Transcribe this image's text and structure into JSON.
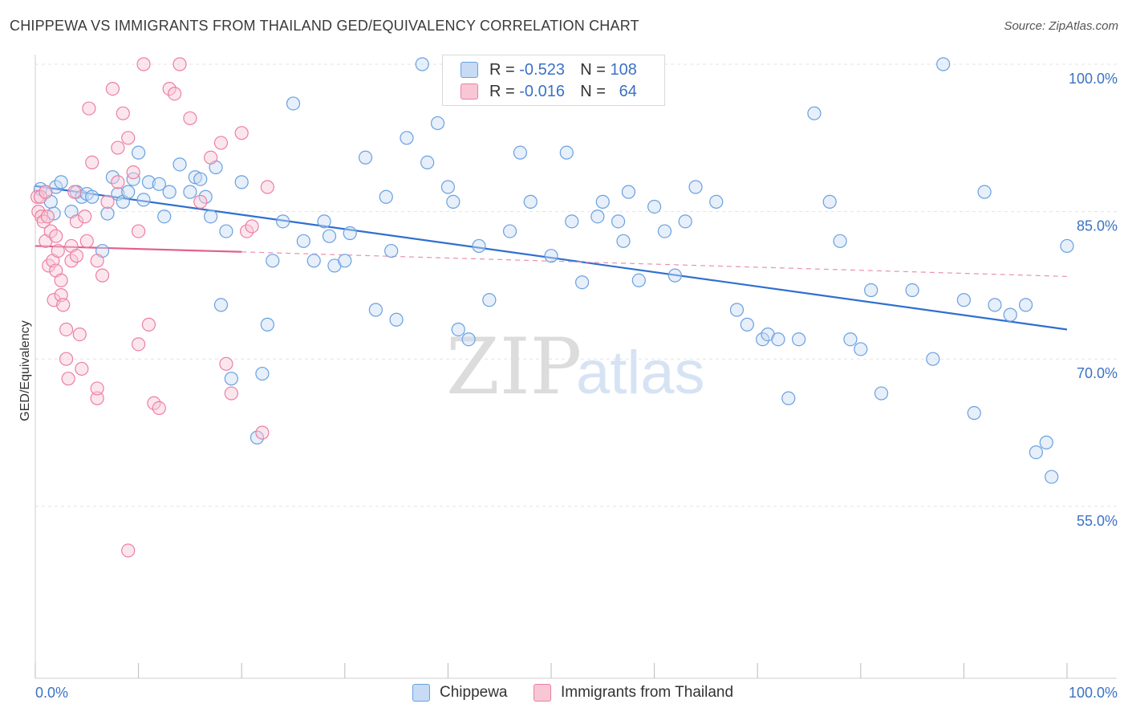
{
  "title": "CHIPPEWA VS IMMIGRANTS FROM THAILAND GED/EQUIVALENCY CORRELATION CHART",
  "source": "Source: ZipAtlas.com",
  "watermark": {
    "zip": "ZIP",
    "atlas": "atlas"
  },
  "legend": {
    "r_label": "R =",
    "n_label": "N =",
    "rows": [
      {
        "name": "Chippewa",
        "r": "-0.523",
        "n": "108",
        "color": "#6aa0e0",
        "fill": "#c7dbf5"
      },
      {
        "name": "Immigrants from Thailand",
        "r": "-0.016",
        "n": "64",
        "color": "#ec7fa2",
        "fill": "#f8c7d6"
      }
    ]
  },
  "chart_data": {
    "type": "scatter",
    "title": "CHIPPEWA VS IMMIGRANTS FROM THAILAND GED/EQUIVALENCY CORRELATION CHART",
    "xlabel": "",
    "ylabel": "GED/Equivalency",
    "xlim": [
      0,
      100
    ],
    "ylim": [
      37.5,
      100
    ],
    "x_tick_labels": [
      "0.0%",
      "100.0%"
    ],
    "y_ticks": [
      100,
      85,
      70,
      55
    ],
    "y_tick_labels": [
      "100.0%",
      "85.0%",
      "70.0%",
      "55.0%"
    ],
    "series": [
      {
        "name": "Chippewa",
        "color": "#6aa0e0",
        "fill": "#c7dbf5",
        "trend": {
          "x": [
            0,
            100
          ],
          "y": [
            87.6,
            73.0
          ],
          "dashed_x": null
        },
        "points": [
          [
            0.5,
            87.3
          ],
          [
            1.0,
            87.0
          ],
          [
            1.5,
            86.0
          ],
          [
            1.8,
            84.8
          ],
          [
            2.0,
            87.5
          ],
          [
            2.5,
            88.0
          ],
          [
            3.5,
            85.0
          ],
          [
            4.0,
            87.0
          ],
          [
            4.5,
            86.5
          ],
          [
            5.0,
            86.8
          ],
          [
            5.5,
            86.5
          ],
          [
            6.5,
            81.0
          ],
          [
            7.0,
            84.8
          ],
          [
            7.5,
            88.5
          ],
          [
            8.0,
            86.8
          ],
          [
            8.5,
            86.0
          ],
          [
            9.0,
            87.0
          ],
          [
            9.5,
            88.3
          ],
          [
            10.0,
            91.0
          ],
          [
            10.5,
            86.2
          ],
          [
            11.0,
            88.0
          ],
          [
            12.0,
            87.8
          ],
          [
            12.5,
            84.5
          ],
          [
            13.0,
            87.0
          ],
          [
            14.0,
            89.8
          ],
          [
            15.0,
            87.0
          ],
          [
            15.5,
            88.5
          ],
          [
            16.0,
            88.3
          ],
          [
            16.5,
            86.5
          ],
          [
            17.0,
            84.5
          ],
          [
            17.5,
            89.5
          ],
          [
            18.0,
            75.5
          ],
          [
            18.5,
            83.0
          ],
          [
            19.0,
            68.0
          ],
          [
            20.0,
            88.0
          ],
          [
            21.5,
            62.0
          ],
          [
            22.0,
            68.5
          ],
          [
            22.5,
            73.5
          ],
          [
            23.0,
            80.0
          ],
          [
            24.0,
            84.0
          ],
          [
            25.0,
            96.0
          ],
          [
            26.0,
            82.0
          ],
          [
            27.0,
            80.0
          ],
          [
            28.0,
            84.0
          ],
          [
            28.5,
            82.5
          ],
          [
            29.0,
            79.5
          ],
          [
            30.0,
            80.0
          ],
          [
            30.5,
            82.8
          ],
          [
            32.0,
            90.5
          ],
          [
            33.0,
            75.0
          ],
          [
            34.0,
            86.5
          ],
          [
            34.5,
            81.0
          ],
          [
            35.0,
            74.0
          ],
          [
            36.0,
            92.5
          ],
          [
            37.5,
            100.0
          ],
          [
            38.0,
            90.0
          ],
          [
            39.0,
            94.0
          ],
          [
            40.0,
            87.5
          ],
          [
            40.5,
            86.0
          ],
          [
            41.0,
            73.0
          ],
          [
            42.0,
            72.0
          ],
          [
            43.0,
            81.5
          ],
          [
            44.0,
            76.0
          ],
          [
            46.0,
            83.0
          ],
          [
            47.0,
            91.0
          ],
          [
            48.0,
            86.0
          ],
          [
            50.0,
            80.5
          ],
          [
            51.5,
            91.0
          ],
          [
            52.0,
            84.0
          ],
          [
            53.0,
            77.8
          ],
          [
            54.5,
            84.5
          ],
          [
            55.0,
            86.0
          ],
          [
            56.5,
            84.0
          ],
          [
            57.0,
            82.0
          ],
          [
            57.5,
            87.0
          ],
          [
            58.5,
            78.0
          ],
          [
            60.0,
            85.5
          ],
          [
            61.0,
            83.0
          ],
          [
            62.0,
            78.5
          ],
          [
            63.0,
            84.0
          ],
          [
            64.0,
            87.5
          ],
          [
            66.0,
            86.0
          ],
          [
            68.0,
            75.0
          ],
          [
            69.0,
            73.5
          ],
          [
            70.5,
            72.0
          ],
          [
            71.0,
            72.5
          ],
          [
            72.0,
            72.0
          ],
          [
            73.0,
            66.0
          ],
          [
            74.0,
            72.0
          ],
          [
            75.5,
            95.0
          ],
          [
            77.0,
            86.0
          ],
          [
            78.0,
            82.0
          ],
          [
            79.0,
            72.0
          ],
          [
            80.0,
            71.0
          ],
          [
            81.0,
            77.0
          ],
          [
            82.0,
            66.5
          ],
          [
            85.0,
            77.0
          ],
          [
            87.0,
            70.0
          ],
          [
            88.0,
            100.0
          ],
          [
            90.0,
            76.0
          ],
          [
            91.0,
            64.5
          ],
          [
            92.0,
            87.0
          ],
          [
            93.0,
            75.5
          ],
          [
            94.5,
            74.5
          ],
          [
            96.0,
            75.5
          ],
          [
            97.0,
            60.5
          ],
          [
            98.0,
            61.5
          ],
          [
            98.5,
            58.0
          ],
          [
            100.0,
            81.5
          ]
        ]
      },
      {
        "name": "Immigrants from Thailand",
        "color": "#ec7fa2",
        "fill": "#f8c7d6",
        "trend": {
          "x": [
            0,
            20
          ],
          "y": [
            81.5,
            80.9
          ],
          "dashed_x": [
            20,
            100
          ],
          "dashed_y": [
            80.9,
            78.4
          ]
        },
        "points": [
          [
            0.2,
            86.5
          ],
          [
            0.3,
            85.0
          ],
          [
            0.5,
            86.5
          ],
          [
            0.6,
            84.5
          ],
          [
            0.8,
            84.0
          ],
          [
            1.0,
            87.0
          ],
          [
            1.0,
            82.0
          ],
          [
            1.2,
            84.5
          ],
          [
            1.3,
            79.5
          ],
          [
            1.5,
            83.0
          ],
          [
            1.7,
            80.0
          ],
          [
            1.8,
            76.0
          ],
          [
            2.0,
            82.5
          ],
          [
            2.0,
            79.0
          ],
          [
            2.2,
            81.0
          ],
          [
            2.5,
            78.0
          ],
          [
            2.5,
            76.5
          ],
          [
            2.7,
            75.5
          ],
          [
            3.0,
            73.0
          ],
          [
            3.0,
            70.0
          ],
          [
            3.2,
            68.0
          ],
          [
            3.5,
            80.0
          ],
          [
            3.5,
            81.5
          ],
          [
            3.8,
            87.0
          ],
          [
            4.0,
            84.0
          ],
          [
            4.0,
            80.5
          ],
          [
            4.3,
            72.5
          ],
          [
            4.5,
            69.0
          ],
          [
            4.8,
            84.5
          ],
          [
            5.0,
            82.0
          ],
          [
            5.2,
            95.5
          ],
          [
            5.5,
            90.0
          ],
          [
            6.0,
            66.0
          ],
          [
            6.0,
            67.0
          ],
          [
            6.5,
            78.5
          ],
          [
            7.0,
            86.0
          ],
          [
            7.5,
            97.5
          ],
          [
            8.0,
            91.5
          ],
          [
            8.5,
            95.0
          ],
          [
            9.0,
            92.5
          ],
          [
            9.5,
            89.0
          ],
          [
            10.0,
            83.0
          ],
          [
            10.5,
            100.0
          ],
          [
            11.0,
            73.5
          ],
          [
            11.5,
            65.5
          ],
          [
            12.0,
            65.0
          ],
          [
            13.0,
            97.5
          ],
          [
            13.5,
            97.0
          ],
          [
            14.0,
            100.0
          ],
          [
            15.0,
            94.5
          ],
          [
            16.0,
            86.0
          ],
          [
            17.0,
            90.5
          ],
          [
            18.0,
            92.0
          ],
          [
            18.5,
            69.5
          ],
          [
            19.0,
            66.5
          ],
          [
            20.0,
            93.0
          ],
          [
            20.5,
            83.0
          ],
          [
            21.0,
            83.5
          ],
          [
            22.0,
            62.5
          ],
          [
            22.5,
            87.5
          ],
          [
            9.0,
            50.5
          ],
          [
            10.0,
            71.5
          ],
          [
            6.0,
            80.0
          ],
          [
            8.0,
            88.0
          ]
        ]
      }
    ]
  }
}
